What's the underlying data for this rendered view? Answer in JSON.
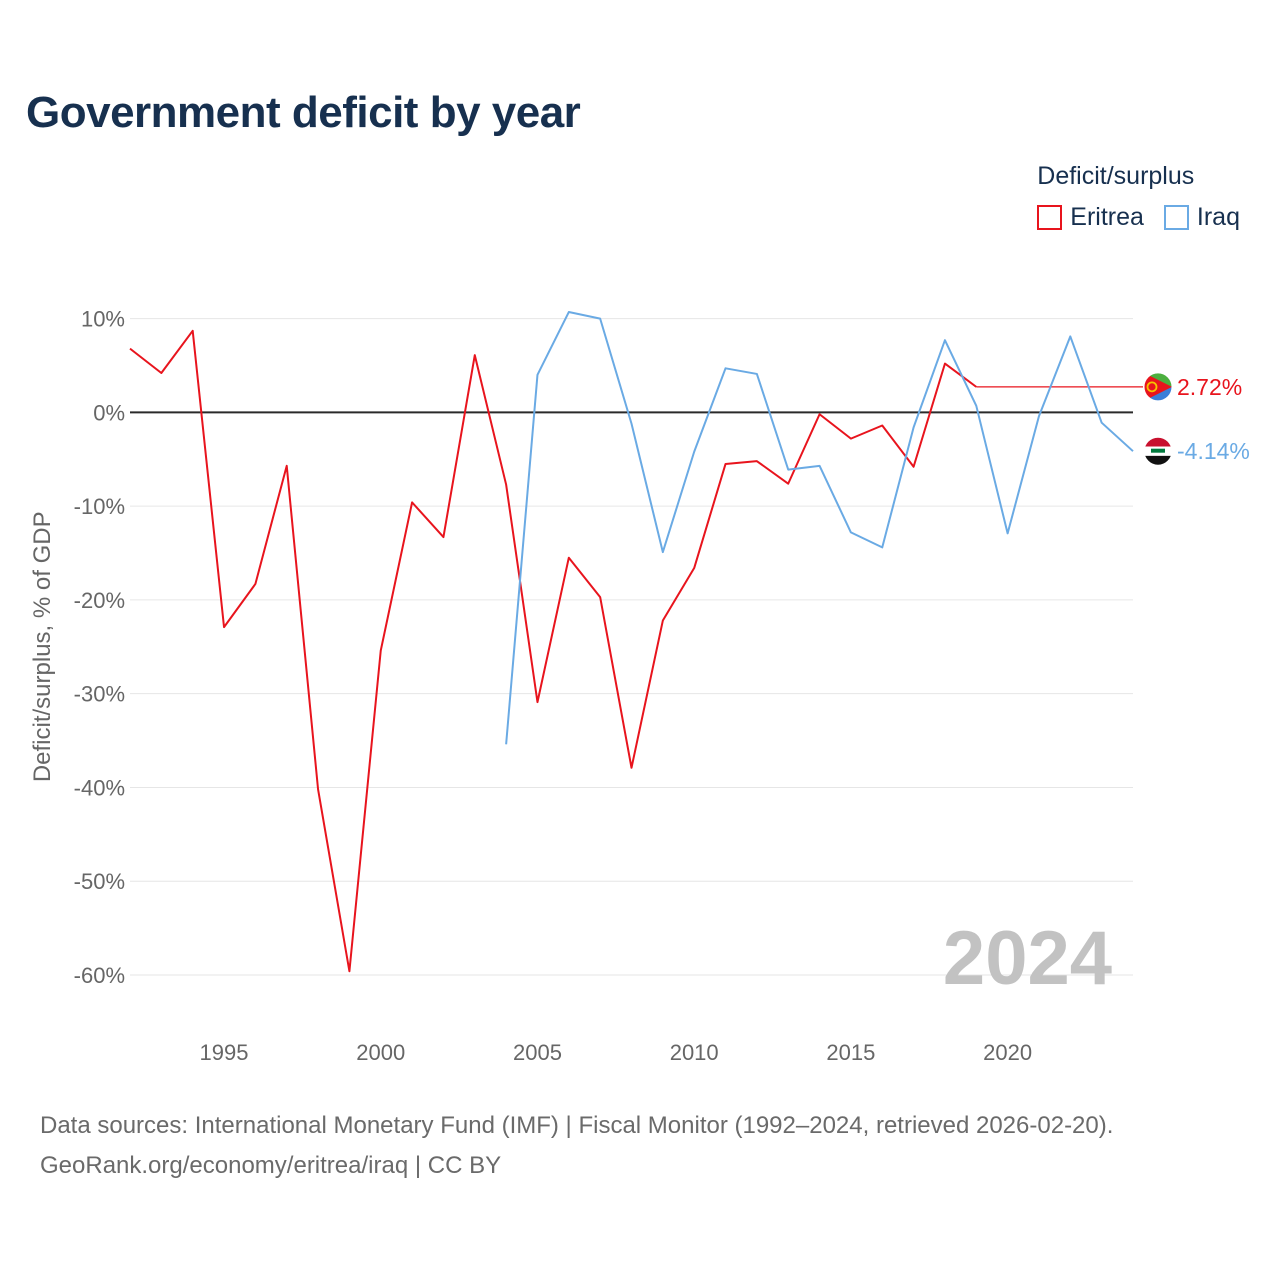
{
  "title": "Government deficit by year",
  "legend": {
    "title": "Deficit/surplus",
    "items": [
      {
        "label": "Eritrea",
        "color": "#e8141d"
      },
      {
        "label": "Iraq",
        "color": "#6aaae4"
      }
    ]
  },
  "year_watermark": "2024",
  "source": {
    "line1": "Data sources: International Monetary Fund (IMF) | Fiscal Monitor (1992–2024, retrieved 2026-02-20).",
    "line2": "GeoRank.org/economy/eritrea/iraq | CC BY"
  },
  "chart_data": {
    "type": "line",
    "title": "Government deficit by year",
    "xlabel": "",
    "ylabel": "Deficit/surplus, % of GDP",
    "xlim": [
      1992,
      2024
    ],
    "ylim": [
      -60,
      10
    ],
    "xticks": [
      1995,
      2000,
      2005,
      2010,
      2015,
      2020
    ],
    "yticks": [
      10,
      0,
      -10,
      -20,
      -30,
      -40,
      -50,
      -60
    ],
    "ytick_labels": [
      "10%",
      "0%",
      "-10%",
      "-20%",
      "-30%",
      "-40%",
      "-50%",
      "-60%"
    ],
    "grid": true,
    "zero_line": true,
    "series": [
      {
        "name": "Eritrea",
        "color": "#e8141d",
        "end_label": "2.72%",
        "end_value": 2.72,
        "points": [
          [
            1992,
            6.8
          ],
          [
            1993,
            4.2
          ],
          [
            1994,
            8.7
          ],
          [
            1995,
            -22.9
          ],
          [
            1996,
            -18.3
          ],
          [
            1997,
            -5.7
          ],
          [
            1998,
            -40.2
          ],
          [
            1999,
            -59.6
          ],
          [
            2000,
            -25.4
          ],
          [
            2001,
            -9.6
          ],
          [
            2002,
            -13.3
          ],
          [
            2003,
            6.1
          ],
          [
            2004,
            -7.7
          ],
          [
            2005,
            -30.9
          ],
          [
            2006,
            -15.5
          ],
          [
            2007,
            -19.7
          ],
          [
            2008,
            -37.9
          ],
          [
            2009,
            -22.2
          ],
          [
            2010,
            -16.6
          ],
          [
            2011,
            -5.5
          ],
          [
            2012,
            -5.2
          ],
          [
            2013,
            -7.6
          ],
          [
            2014,
            -0.2
          ],
          [
            2015,
            -2.8
          ],
          [
            2016,
            -1.4
          ],
          [
            2017,
            -5.8
          ],
          [
            2018,
            5.2
          ],
          [
            2019,
            2.72
          ]
        ]
      },
      {
        "name": "Iraq",
        "color": "#6aaae4",
        "end_label": "-4.14%",
        "end_value": -4.14,
        "points": [
          [
            2004,
            -35.4
          ],
          [
            2005,
            4.0
          ],
          [
            2006,
            10.7
          ],
          [
            2007,
            10.0
          ],
          [
            2008,
            -1.2
          ],
          [
            2009,
            -14.9
          ],
          [
            2010,
            -4.2
          ],
          [
            2011,
            4.7
          ],
          [
            2012,
            4.1
          ],
          [
            2013,
            -6.1
          ],
          [
            2014,
            -5.7
          ],
          [
            2015,
            -12.8
          ],
          [
            2016,
            -14.4
          ],
          [
            2017,
            -1.6
          ],
          [
            2018,
            7.7
          ],
          [
            2019,
            0.7
          ],
          [
            2020,
            -12.9
          ],
          [
            2021,
            -0.4
          ],
          [
            2022,
            8.1
          ],
          [
            2023,
            -1.1
          ],
          [
            2024,
            -4.14
          ]
        ]
      }
    ]
  }
}
